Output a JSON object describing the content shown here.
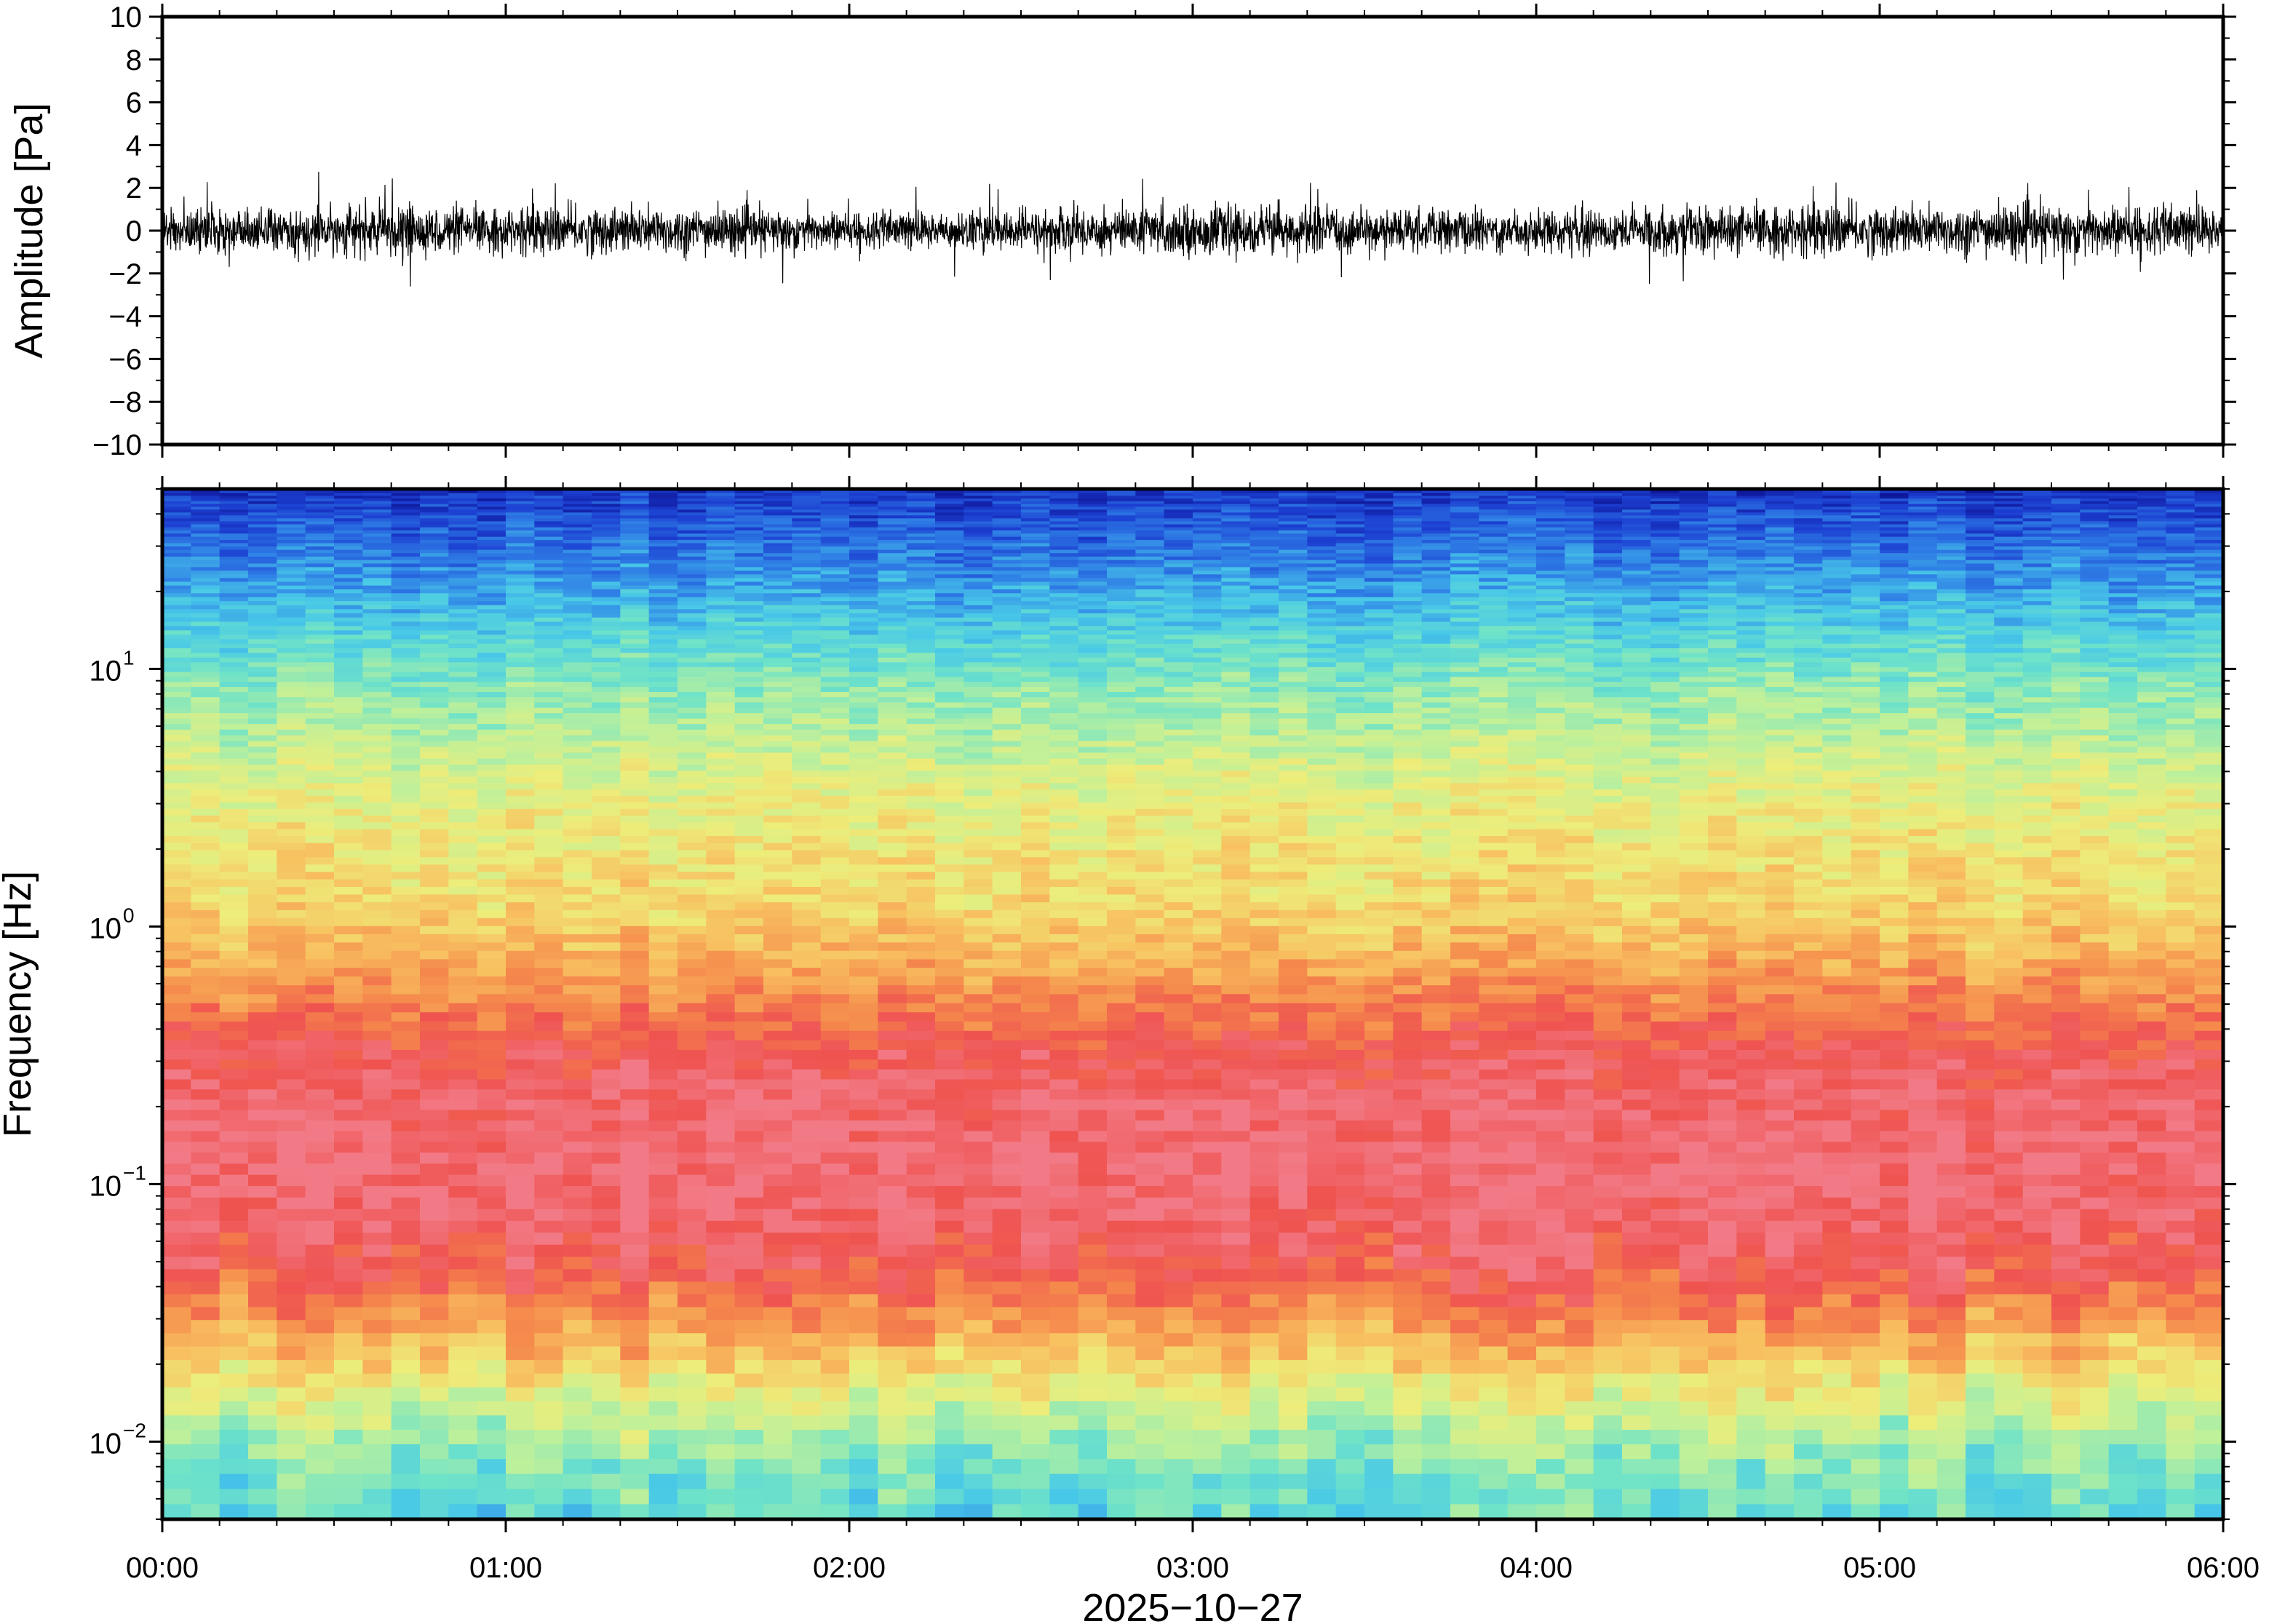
{
  "chart_data": [
    {
      "type": "line",
      "panel": "waveform",
      "title": "",
      "xlabel": "",
      "ylabel": "Amplitude [Pa]",
      "ylim": [
        -10,
        10
      ],
      "yticks": [
        -10,
        -8,
        -6,
        -4,
        -2,
        0,
        2,
        4,
        6,
        8,
        10
      ],
      "ytick_labels": [
        "−10",
        "−8",
        "−6",
        "−4",
        "−2",
        "0",
        "2",
        "4",
        "6",
        "8",
        "10"
      ],
      "xlim_hours": [
        0,
        6
      ],
      "grid": false,
      "legend": "none",
      "line_color": "#000000",
      "noise_envelope": {
        "x_hours": [
          0,
          0.5,
          1,
          1.5,
          2,
          2.5,
          2.75,
          3,
          3.5,
          4,
          4.5,
          5,
          5.5,
          6
        ],
        "typical_abs_pa": [
          1.2,
          1.3,
          1.2,
          1.3,
          1.0,
          1.1,
          1.3,
          1.3,
          1.2,
          1.1,
          1.3,
          1.3,
          1.4,
          1.3
        ],
        "peak_abs_pa": [
          2.6,
          2.8,
          2.4,
          3.2,
          2.5,
          2.6,
          3.2,
          2.7,
          2.4,
          2.5,
          2.6,
          2.7,
          2.6,
          2.3
        ]
      }
    },
    {
      "type": "heatmap",
      "panel": "spectrogram",
      "title": "",
      "xlabel": "2025−10−27",
      "ylabel": "Frequency [Hz]",
      "yscale": "log",
      "ylim": [
        0.005,
        50
      ],
      "yticks": [
        0.01,
        0.1,
        1,
        10
      ],
      "ytick_labels": [
        {
          "base": "10",
          "exp": "−2"
        },
        {
          "base": "10",
          "exp": "−1"
        },
        {
          "base": "10",
          "exp": "0"
        },
        {
          "base": "10",
          "exp": "1"
        }
      ],
      "xticks_hours": [
        0,
        1,
        2,
        3,
        4,
        5,
        6
      ],
      "xtick_labels": [
        "00:00",
        "01:00",
        "02:00",
        "03:00",
        "04:00",
        "05:00",
        "06:00"
      ],
      "grid": false,
      "legend": "none",
      "colormap": [
        "#0b0f8e",
        "#1c3fd1",
        "#2f7fe6",
        "#48c8e8",
        "#6fe3c8",
        "#bff09a",
        "#eded7a",
        "#f8c060",
        "#f58a4c",
        "#ef5350",
        "#f27a86"
      ],
      "spectrum_profile": {
        "log10_freq": [
          -2.3,
          -2.1,
          -1.9,
          -1.7,
          -1.5,
          -1.3,
          -1.1,
          -0.9,
          -0.7,
          -0.5,
          -0.3,
          -0.1,
          0.1,
          0.3,
          0.5,
          0.7,
          0.9,
          1.1,
          1.3,
          1.5,
          1.7
        ],
        "color_level": [
          3.6,
          4.2,
          5.2,
          6.6,
          8.0,
          9.2,
          9.6,
          9.8,
          9.6,
          9.2,
          8.2,
          7.2,
          6.5,
          6.2,
          5.8,
          5.2,
          4.5,
          3.6,
          2.6,
          1.7,
          0.8
        ]
      }
    }
  ]
}
